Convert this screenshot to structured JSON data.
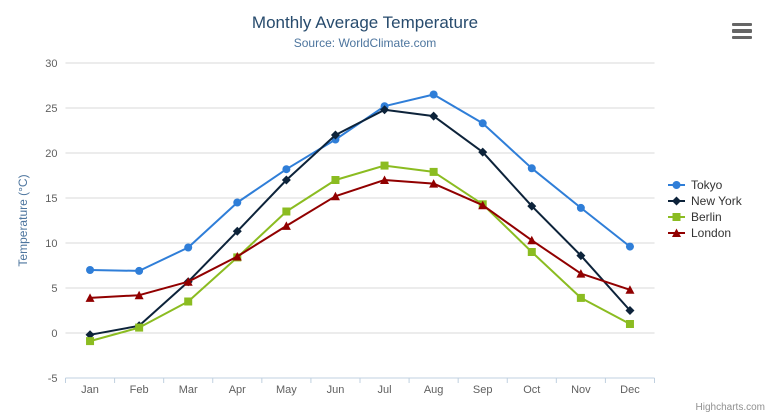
{
  "chart": {
    "title": "Monthly Average Temperature",
    "subtitle": "Source: WorldClimate.com",
    "credits": "Highcharts.com",
    "colors": {
      "title": "#274b6d",
      "subtitle": "#4d759e",
      "axis_title": "#4d759e",
      "axis_labels": "#606060",
      "gridline": "#d8d8d8",
      "axis_line": "#c0d0e0",
      "legend_text": "#333333",
      "export_icon": "#666666",
      "credits_text": "#909090"
    }
  },
  "icons": {
    "export_menu": "hamburger-icon"
  },
  "chart_data": {
    "type": "line",
    "title": "Monthly Average Temperature",
    "subtitle": "Source: WorldClimate.com",
    "xlabel": "",
    "ylabel": "Temperature (°C)",
    "ylim": [
      -5,
      30
    ],
    "yticks": [
      -5,
      0,
      5,
      10,
      15,
      20,
      25,
      30
    ],
    "grid": true,
    "legend_position": "right",
    "categories": [
      "Jan",
      "Feb",
      "Mar",
      "Apr",
      "May",
      "Jun",
      "Jul",
      "Aug",
      "Sep",
      "Oct",
      "Nov",
      "Dec"
    ],
    "series": [
      {
        "name": "Tokyo",
        "color": "#2f7ed8",
        "marker": "circle",
        "values": [
          7.0,
          6.9,
          9.5,
          14.5,
          18.2,
          21.5,
          25.2,
          26.5,
          23.3,
          18.3,
          13.9,
          9.6
        ]
      },
      {
        "name": "New York",
        "color": "#0d233a",
        "marker": "diamond",
        "values": [
          -0.2,
          0.8,
          5.7,
          11.3,
          17.0,
          22.0,
          24.8,
          24.1,
          20.1,
          14.1,
          8.6,
          2.5
        ]
      },
      {
        "name": "Berlin",
        "color": "#8bbc21",
        "marker": "square",
        "values": [
          -0.9,
          0.6,
          3.5,
          8.4,
          13.5,
          17.0,
          18.6,
          17.9,
          14.3,
          9.0,
          3.9,
          1.0
        ]
      },
      {
        "name": "London",
        "color": "#910000",
        "marker": "triangle",
        "values": [
          3.9,
          4.2,
          5.7,
          8.5,
          11.9,
          15.2,
          17.0,
          16.6,
          14.2,
          10.3,
          6.6,
          4.8
        ]
      }
    ]
  }
}
